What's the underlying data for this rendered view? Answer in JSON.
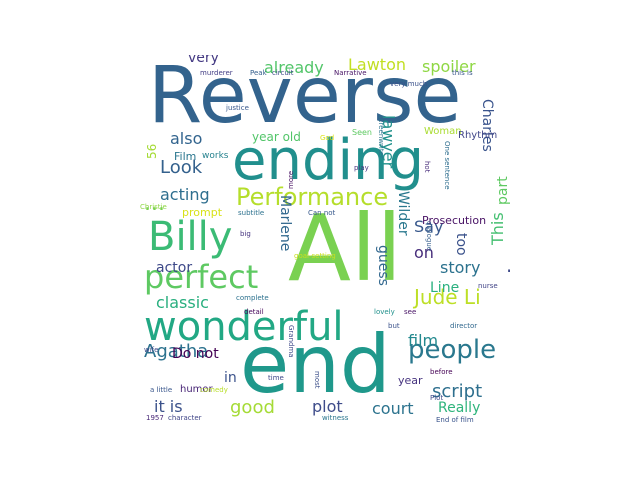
{
  "words": [
    {
      "text": "Reverse",
      "color": "#33638d"
    },
    {
      "text": "ending",
      "color": "#218f8d"
    },
    {
      "text": "All",
      "color": "#7ad151"
    },
    {
      "text": "end",
      "color": "#1f988b"
    },
    {
      "text": "wonderful",
      "color": "#22a884"
    },
    {
      "text": "Billy",
      "color": "#3bbb75"
    },
    {
      "text": "perfect",
      "color": "#5ec962"
    },
    {
      "text": "Performance",
      "color": "#b5de2b"
    },
    {
      "text": "people",
      "color": "#2a788e"
    },
    {
      "text": "Jude Li",
      "color": "#bddf26"
    },
    {
      "text": "Lawton",
      "color": "#c2df23"
    },
    {
      "text": "spoiler",
      "color": "#8fd744"
    },
    {
      "text": "already",
      "color": "#52c569"
    },
    {
      "text": "very",
      "color": "#443a83"
    },
    {
      "text": "also",
      "color": "#32648e"
    },
    {
      "text": "Look",
      "color": "#34618d"
    },
    {
      "text": "acting",
      "color": "#2e6e8e"
    },
    {
      "text": "classic",
      "color": "#29af7f"
    },
    {
      "text": "Agatha",
      "color": "#2c728e"
    },
    {
      "text": "it is",
      "color": "#3b528b"
    },
    {
      "text": "good",
      "color": "#a5db36"
    },
    {
      "text": "plot",
      "color": "#3e4c8a"
    },
    {
      "text": "court",
      "color": "#2c738e"
    },
    {
      "text": "Really",
      "color": "#2fb47c"
    },
    {
      "text": "script",
      "color": "#2e6f8e"
    },
    {
      "text": "film",
      "color": "#23898e"
    },
    {
      "text": "Line",
      "color": "#2ab07f"
    },
    {
      "text": "story",
      "color": "#2c728e"
    },
    {
      "text": "on",
      "color": "#472d7b"
    },
    {
      "text": "Say",
      "color": "#38588c"
    },
    {
      "text": "too",
      "color": "#3b528b"
    },
    {
      "text": "guess",
      "color": "#31678e"
    },
    {
      "text": "Wilder",
      "color": "#2a788e"
    },
    {
      "text": "lawyer",
      "color": "#21918c"
    },
    {
      "text": "Marlene",
      "color": "#31688e"
    },
    {
      "text": "actor",
      "color": "#3e4989"
    },
    {
      "text": "This",
      "color": "#44bf70"
    },
    {
      "text": "part",
      "color": "#5ec962"
    },
    {
      "text": "Charles",
      "color": "#3a548c"
    },
    {
      "text": "Do not",
      "color": "#440154"
    },
    {
      "text": "in",
      "color": "#3b528b"
    },
    {
      "text": "Prosecution",
      "color": "#471164"
    },
    {
      "text": "year old",
      "color": "#52c569"
    },
    {
      "text": "Film",
      "color": "#2a768e"
    },
    {
      "text": "works",
      "color": "#26828e"
    },
    {
      "text": "prompt",
      "color": "#d8e219"
    },
    {
      "text": "humor",
      "color": "#482576"
    },
    {
      "text": "year",
      "color": "#46337f"
    },
    {
      "text": "Woman",
      "color": "#aadc32"
    },
    {
      "text": "Rhythm",
      "color": "#404688"
    },
    {
      "text": "56",
      "color": "#a5db36"
    },
    {
      "text": "murderer",
      "color": "#433e85"
    },
    {
      "text": "Peak",
      "color": "#355f8d"
    },
    {
      "text": "circuit",
      "color": "#3e4a89"
    },
    {
      "text": "Narrative",
      "color": "#471365"
    },
    {
      "text": "this is",
      "color": "#39568c"
    },
    {
      "text": "justice",
      "color": "#38588c"
    },
    {
      "text": "God",
      "color": "#dde318"
    },
    {
      "text": "Seen",
      "color": "#5ec962"
    },
    {
      "text": "screenwriter",
      "color": "#2b748e"
    },
    {
      "text": "very much",
      "color": "#3b528b"
    },
    {
      "text": "play",
      "color": "#46327e"
    },
    {
      "text": "hot",
      "color": "#472c7a"
    },
    {
      "text": "One sentence",
      "color": "#2e6e8e"
    },
    {
      "text": "Christie",
      "color": "#8fd744"
    },
    {
      "text": "subtitle",
      "color": "#2c718e"
    },
    {
      "text": "Can not",
      "color": "#38598c"
    },
    {
      "text": "dialogue",
      "color": "#355f8d"
    },
    {
      "text": "nurse",
      "color": "#414487"
    },
    {
      "text": "complete",
      "color": "#2c718e"
    },
    {
      "text": "detail",
      "color": "#46085c"
    },
    {
      "text": "lovely",
      "color": "#21918c"
    },
    {
      "text": "director",
      "color": "#31688e"
    },
    {
      "text": "wife",
      "color": "#3e4989"
    },
    {
      "text": "a little",
      "color": "#39568c"
    },
    {
      "text": "comedy",
      "color": "#b8de29"
    },
    {
      "text": "Grandma",
      "color": "#3e4a89"
    },
    {
      "text": "most",
      "color": "#3c4f8a"
    },
    {
      "text": "time",
      "color": "#3f4889"
    },
    {
      "text": "1957",
      "color": "#482878"
    },
    {
      "text": "character",
      "color": "#404688"
    },
    {
      "text": "witness",
      "color": "#2a768e"
    },
    {
      "text": "End of film",
      "color": "#3a548c"
    },
    {
      "text": "before",
      "color": "#440154"
    },
    {
      "text": "Plot",
      "color": "#3e4989"
    },
    {
      "text": "more",
      "color": "#471063"
    },
    {
      "text": "see",
      "color": "#471365"
    },
    {
      "text": "but",
      "color": "#3b528b"
    },
    {
      "text": "goal-setting",
      "color": "#c8e020"
    },
    {
      "text": "big",
      "color": "#46337f"
    },
    {
      "text": "...",
      "color": "#7ad151"
    },
    {
      "text": ".",
      "color": "#3e4989"
    }
  ]
}
